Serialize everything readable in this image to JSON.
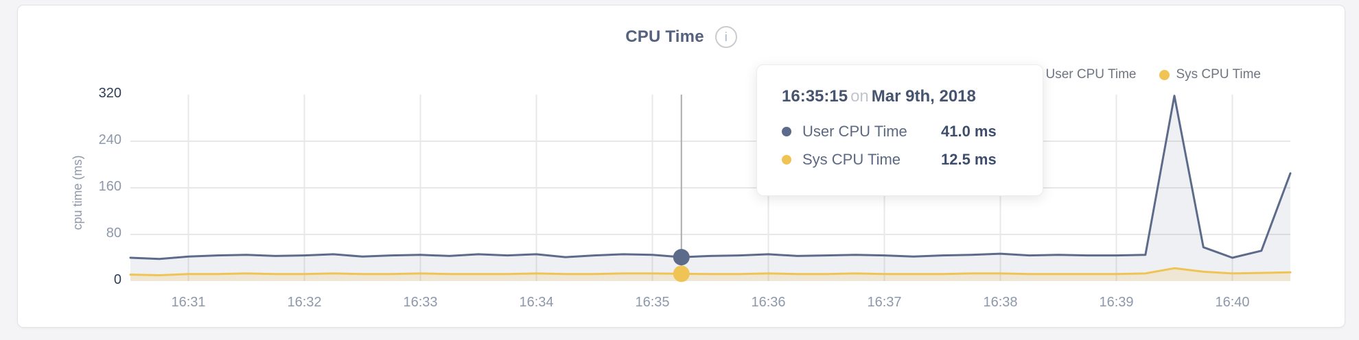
{
  "card": {
    "title": "CPU Time",
    "info_icon": "i"
  },
  "legend": {
    "items": [
      {
        "label": "User CPU Time",
        "color": "#5d6b8a"
      },
      {
        "label": "Sys CPU Time",
        "color": "#efc455"
      }
    ]
  },
  "tooltip": {
    "time": "16:35:15",
    "on_word": "on",
    "date": "Mar 9th, 2018",
    "rows": [
      {
        "label": "User CPU Time",
        "value": "41.0 ms",
        "color": "#5d6b8a"
      },
      {
        "label": "Sys CPU Time",
        "value": "12.5 ms",
        "color": "#efc455"
      }
    ]
  },
  "chart_data": {
    "type": "area",
    "title": "CPU Time",
    "xlabel": "",
    "ylabel": "cpu time (ms)",
    "ylim": [
      0,
      320
    ],
    "grid": true,
    "legend_position": "top-right",
    "y_ticks": [
      {
        "label": "0",
        "value": 0,
        "emphasis": true
      },
      {
        "label": "80",
        "value": 80,
        "emphasis": false
      },
      {
        "label": "160",
        "value": 160,
        "emphasis": false
      },
      {
        "label": "240",
        "value": 240,
        "emphasis": false
      },
      {
        "label": "320",
        "value": 320,
        "emphasis": true
      }
    ],
    "x_ticks": [
      "16:31",
      "16:32",
      "16:33",
      "16:34",
      "16:35",
      "16:36",
      "16:37",
      "16:38",
      "16:39",
      "16:40"
    ],
    "x_range": [
      "16:30:30",
      "16:40:30"
    ],
    "times": [
      "16:30:30",
      "16:30:45",
      "16:31:00",
      "16:31:15",
      "16:31:30",
      "16:31:45",
      "16:32:00",
      "16:32:15",
      "16:32:30",
      "16:32:45",
      "16:33:00",
      "16:33:15",
      "16:33:30",
      "16:33:45",
      "16:34:00",
      "16:34:15",
      "16:34:30",
      "16:34:45",
      "16:35:00",
      "16:35:15",
      "16:35:30",
      "16:35:45",
      "16:36:00",
      "16:36:15",
      "16:36:30",
      "16:36:45",
      "16:37:00",
      "16:37:15",
      "16:37:30",
      "16:37:45",
      "16:38:00",
      "16:38:15",
      "16:38:30",
      "16:38:45",
      "16:39:00",
      "16:39:15",
      "16:39:30",
      "16:39:45",
      "16:40:00",
      "16:40:15",
      "16:40:30"
    ],
    "series": [
      {
        "name": "User CPU Time",
        "color": "#5d6b8a",
        "fill": "rgba(95,110,142,0.10)",
        "values": [
          40,
          38,
          42,
          44,
          45,
          43,
          44,
          46,
          42,
          44,
          45,
          43,
          46,
          44,
          46,
          41,
          44,
          46,
          45,
          41,
          43,
          44,
          46,
          43,
          44,
          45,
          44,
          42,
          44,
          45,
          47,
          44,
          45,
          44,
          44,
          45,
          318,
          58,
          40,
          52,
          185
        ]
      },
      {
        "name": "Sys CPU Time",
        "color": "#efc455",
        "fill": "rgba(239,196,85,0.20)",
        "values": [
          11,
          10,
          12,
          12,
          13,
          12,
          12,
          13,
          12,
          12,
          13,
          12,
          12,
          12,
          13,
          12,
          12,
          13,
          13,
          12.5,
          12,
          12,
          13,
          12,
          12,
          13,
          12,
          12,
          12,
          13,
          13,
          12,
          12,
          12,
          12,
          13,
          22,
          16,
          13,
          14,
          15
        ]
      }
    ],
    "hover": {
      "time": "16:35:15",
      "values": [
        41.0,
        12.5
      ],
      "line_color": "#ababab"
    },
    "colors": {
      "gridline": "#e8e8e8",
      "tick_label": "#8d98ab",
      "tick_label_emphasis": "#2f3d5a"
    }
  }
}
